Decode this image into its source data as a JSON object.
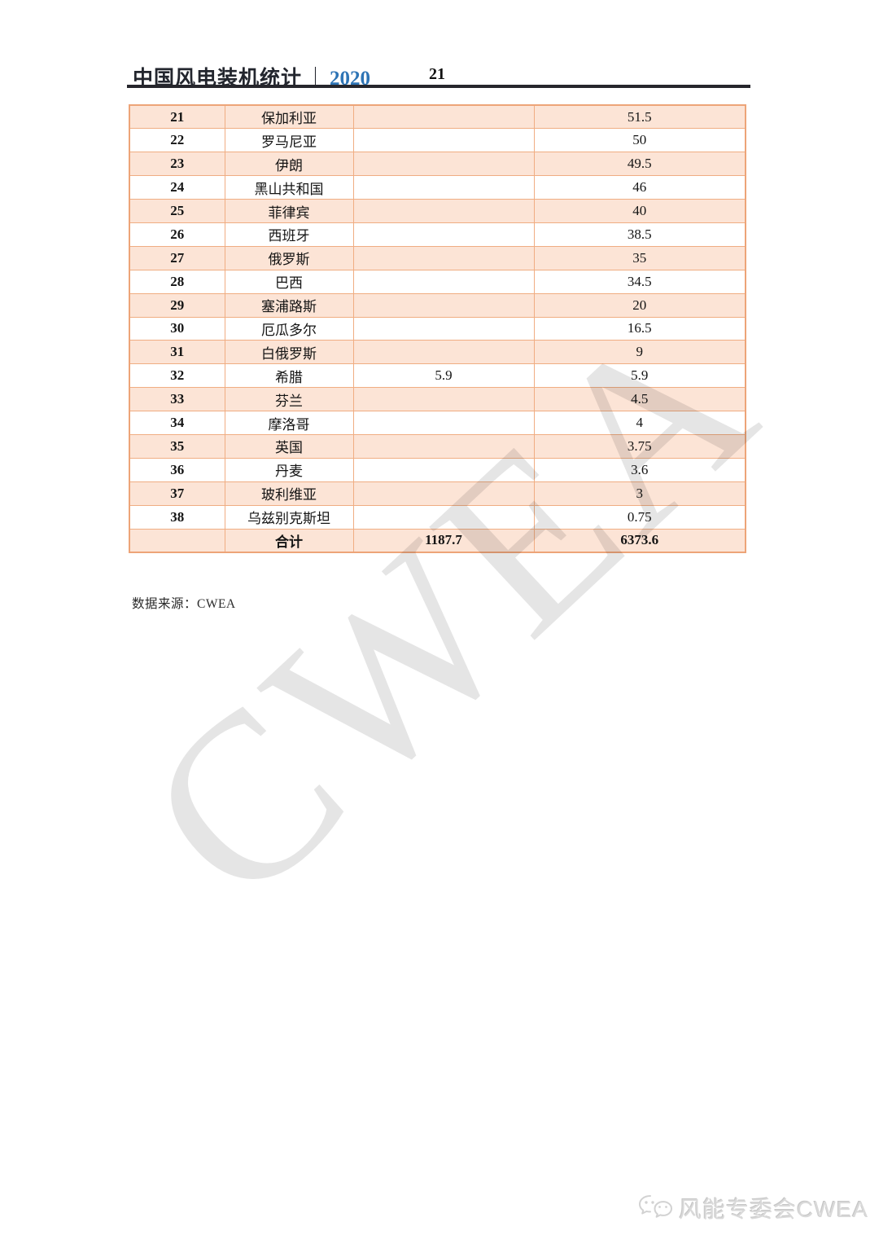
{
  "header": {
    "title": "中国风电装机统计",
    "separator": "｜",
    "year": "2020",
    "page_number": "21"
  },
  "table": {
    "rows": [
      {
        "rank": "21",
        "country": "保加利亚",
        "col3": "",
        "col4": "51.5"
      },
      {
        "rank": "22",
        "country": "罗马尼亚",
        "col3": "",
        "col4": "50"
      },
      {
        "rank": "23",
        "country": "伊朗",
        "col3": "",
        "col4": "49.5"
      },
      {
        "rank": "24",
        "country": "黑山共和国",
        "col3": "",
        "col4": "46"
      },
      {
        "rank": "25",
        "country": "菲律宾",
        "col3": "",
        "col4": "40"
      },
      {
        "rank": "26",
        "country": "西班牙",
        "col3": "",
        "col4": "38.5"
      },
      {
        "rank": "27",
        "country": "俄罗斯",
        "col3": "",
        "col4": "35"
      },
      {
        "rank": "28",
        "country": "巴西",
        "col3": "",
        "col4": "34.5"
      },
      {
        "rank": "29",
        "country": "塞浦路斯",
        "col3": "",
        "col4": "20"
      },
      {
        "rank": "30",
        "country": "厄瓜多尔",
        "col3": "",
        "col4": "16.5"
      },
      {
        "rank": "31",
        "country": "白俄罗斯",
        "col3": "",
        "col4": "9"
      },
      {
        "rank": "32",
        "country": "希腊",
        "col3": "5.9",
        "col4": "5.9"
      },
      {
        "rank": "33",
        "country": "芬兰",
        "col3": "",
        "col4": "4.5"
      },
      {
        "rank": "34",
        "country": "摩洛哥",
        "col3": "",
        "col4": "4"
      },
      {
        "rank": "35",
        "country": "英国",
        "col3": "",
        "col4": "3.75"
      },
      {
        "rank": "36",
        "country": "丹麦",
        "col3": "",
        "col4": "3.6"
      },
      {
        "rank": "37",
        "country": "玻利维亚",
        "col3": "",
        "col4": "3"
      },
      {
        "rank": "38",
        "country": "乌兹别克斯坦",
        "col3": "",
        "col4": "0.75"
      }
    ],
    "total_row": {
      "rank": "",
      "label": "合计",
      "col3": "1187.7",
      "col4": "6373.6"
    }
  },
  "source_note": "数据来源：CWEA",
  "watermark_text": "CWEA",
  "footer": {
    "brand": "风能专委会CWEA"
  },
  "colors": {
    "row_fill": "#fce4d6",
    "table_border": "#f0ad82",
    "year_blue": "#2e74b5",
    "header_rule": "#26262c",
    "watermark_gray": "rgba(30,30,30,0.115)",
    "footer_gray": "#d9d9d9"
  }
}
